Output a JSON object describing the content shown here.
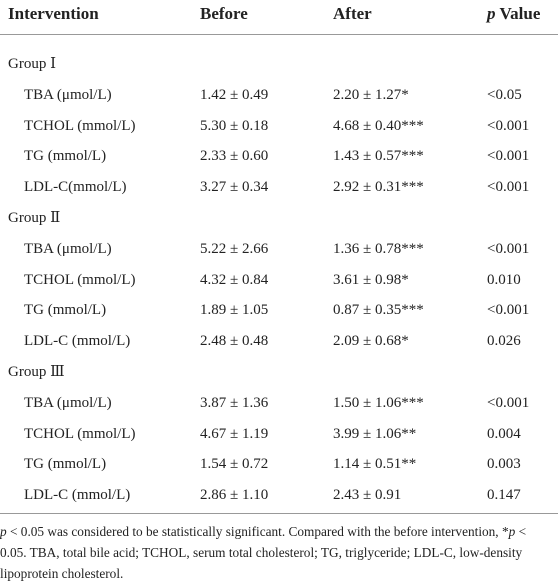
{
  "table": {
    "header": [
      "Intervention",
      "Before",
      "After",
      {
        "italic": "p",
        "text": " Value"
      }
    ],
    "groups": [
      {
        "label": "Group Ⅰ",
        "rows": [
          [
            "TBA (μmol/L)",
            "1.42 ± 0.49",
            "2.20 ± 1.27*",
            "<0.05"
          ],
          [
            "TCHOL (mmol/L)",
            "5.30 ± 0.18",
            "4.68 ± 0.40***",
            "<0.001"
          ],
          [
            "TG (mmol/L)",
            "2.33 ± 0.60",
            "1.43 ± 0.57***",
            "<0.001"
          ],
          [
            "LDL-C(mmol/L)",
            "3.27 ± 0.34",
            "2.92 ± 0.31***",
            "<0.001"
          ]
        ]
      },
      {
        "label": "Group Ⅱ",
        "rows": [
          [
            "TBA (μmol/L)",
            "5.22 ± 2.66",
            "1.36 ± 0.78***",
            "<0.001"
          ],
          [
            "TCHOL (mmol/L)",
            "4.32 ± 0.84",
            "3.61 ± 0.98*",
            "0.010"
          ],
          [
            "TG (mmol/L)",
            "1.89 ± 1.05",
            "0.87 ± 0.35***",
            "<0.001"
          ],
          [
            "LDL-C (mmol/L)",
            "2.48 ± 0.48",
            "2.09 ± 0.68*",
            "0.026"
          ]
        ]
      },
      {
        "label": "Group Ⅲ",
        "rows": [
          [
            "TBA (μmol/L)",
            "3.87 ± 1.36",
            "1.50 ± 1.06***",
            "<0.001"
          ],
          [
            "TCHOL (mmol/L)",
            "4.67 ± 1.19",
            "3.99 ± 1.06**",
            "0.004"
          ],
          [
            "TG (mmol/L)",
            "1.54 ± 0.72",
            "1.14 ± 0.51**",
            "0.003"
          ],
          [
            "LDL-C (mmol/L)",
            "2.86 ± 1.10",
            "2.43 ± 0.91",
            "0.147"
          ]
        ]
      }
    ],
    "footnote": [
      {
        "text": "p",
        "italic": true
      },
      {
        "text": " < 0.05 was considered to be statistically significant. Compared with the before intervention, *"
      },
      {
        "text": "p",
        "italic": true
      },
      {
        "text": " < 0.05. TBA, total bile acid; TCHOL, serum total cholesterol; TG, triglyceride; LDL-C, low-density lipoprotein cholesterol."
      }
    ]
  }
}
